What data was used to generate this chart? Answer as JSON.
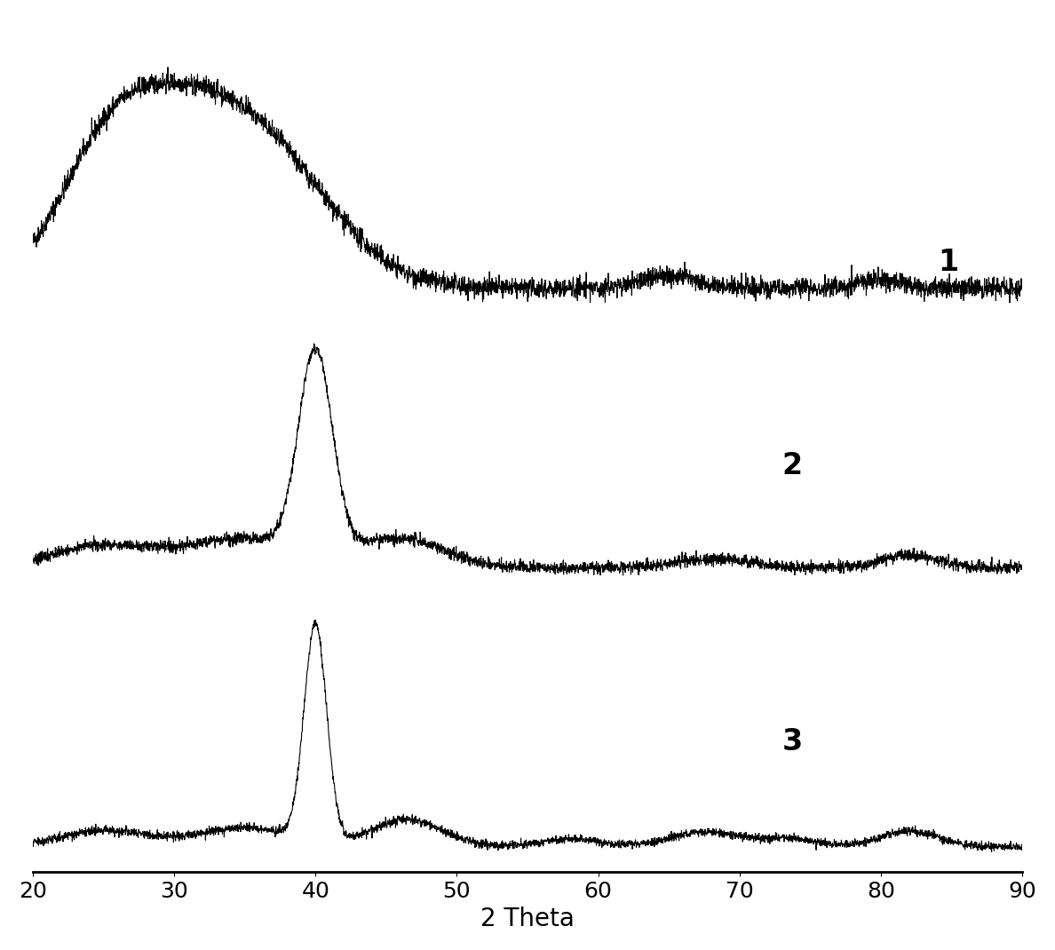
{
  "xlabel": "2 Theta",
  "xlim": [
    20,
    90
  ],
  "xticks": [
    20,
    30,
    40,
    50,
    60,
    70,
    80,
    90
  ],
  "background_color": "#ffffff",
  "line_color": "#000000",
  "label_fontsize": 20,
  "tick_fontsize": 18,
  "curve_labels": [
    "1",
    "2",
    "3"
  ],
  "offsets": [
    0.68,
    0.34,
    0.0
  ],
  "seed": 42,
  "n_points": 3500,
  "noise_level": 0.008,
  "trace_scale": 0.28
}
